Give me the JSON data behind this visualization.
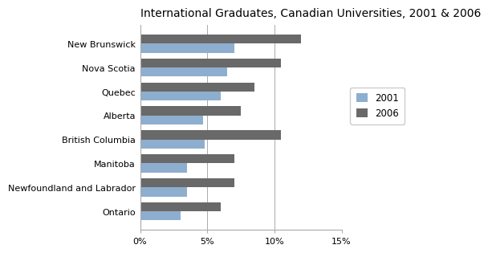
{
  "title": "International Graduates, Canadian Universities, 2001 & 2006",
  "provinces": [
    "New Brunswick",
    "Nova Scotia",
    "Quebec",
    "Alberta",
    "British Columbia",
    "Manitoba",
    "Newfoundland and Labrador",
    "Ontario"
  ],
  "values_2001": [
    7.0,
    6.5,
    6.0,
    4.7,
    4.8,
    3.5,
    3.5,
    3.0
  ],
  "values_2006": [
    12.0,
    10.5,
    8.5,
    7.5,
    10.5,
    7.0,
    7.0,
    6.0
  ],
  "color_2001": "#8eaecf",
  "color_2006": "#696969",
  "xlim": [
    0,
    15
  ],
  "xticks": [
    0,
    5,
    10,
    15
  ],
  "xtick_labels": [
    "0%",
    "5%",
    "10%",
    "15%"
  ],
  "legend_labels": [
    "2001",
    "2006"
  ],
  "bar_height": 0.38,
  "title_fontsize": 10,
  "tick_fontsize": 8,
  "legend_fontsize": 8.5,
  "background_color": "#ffffff"
}
